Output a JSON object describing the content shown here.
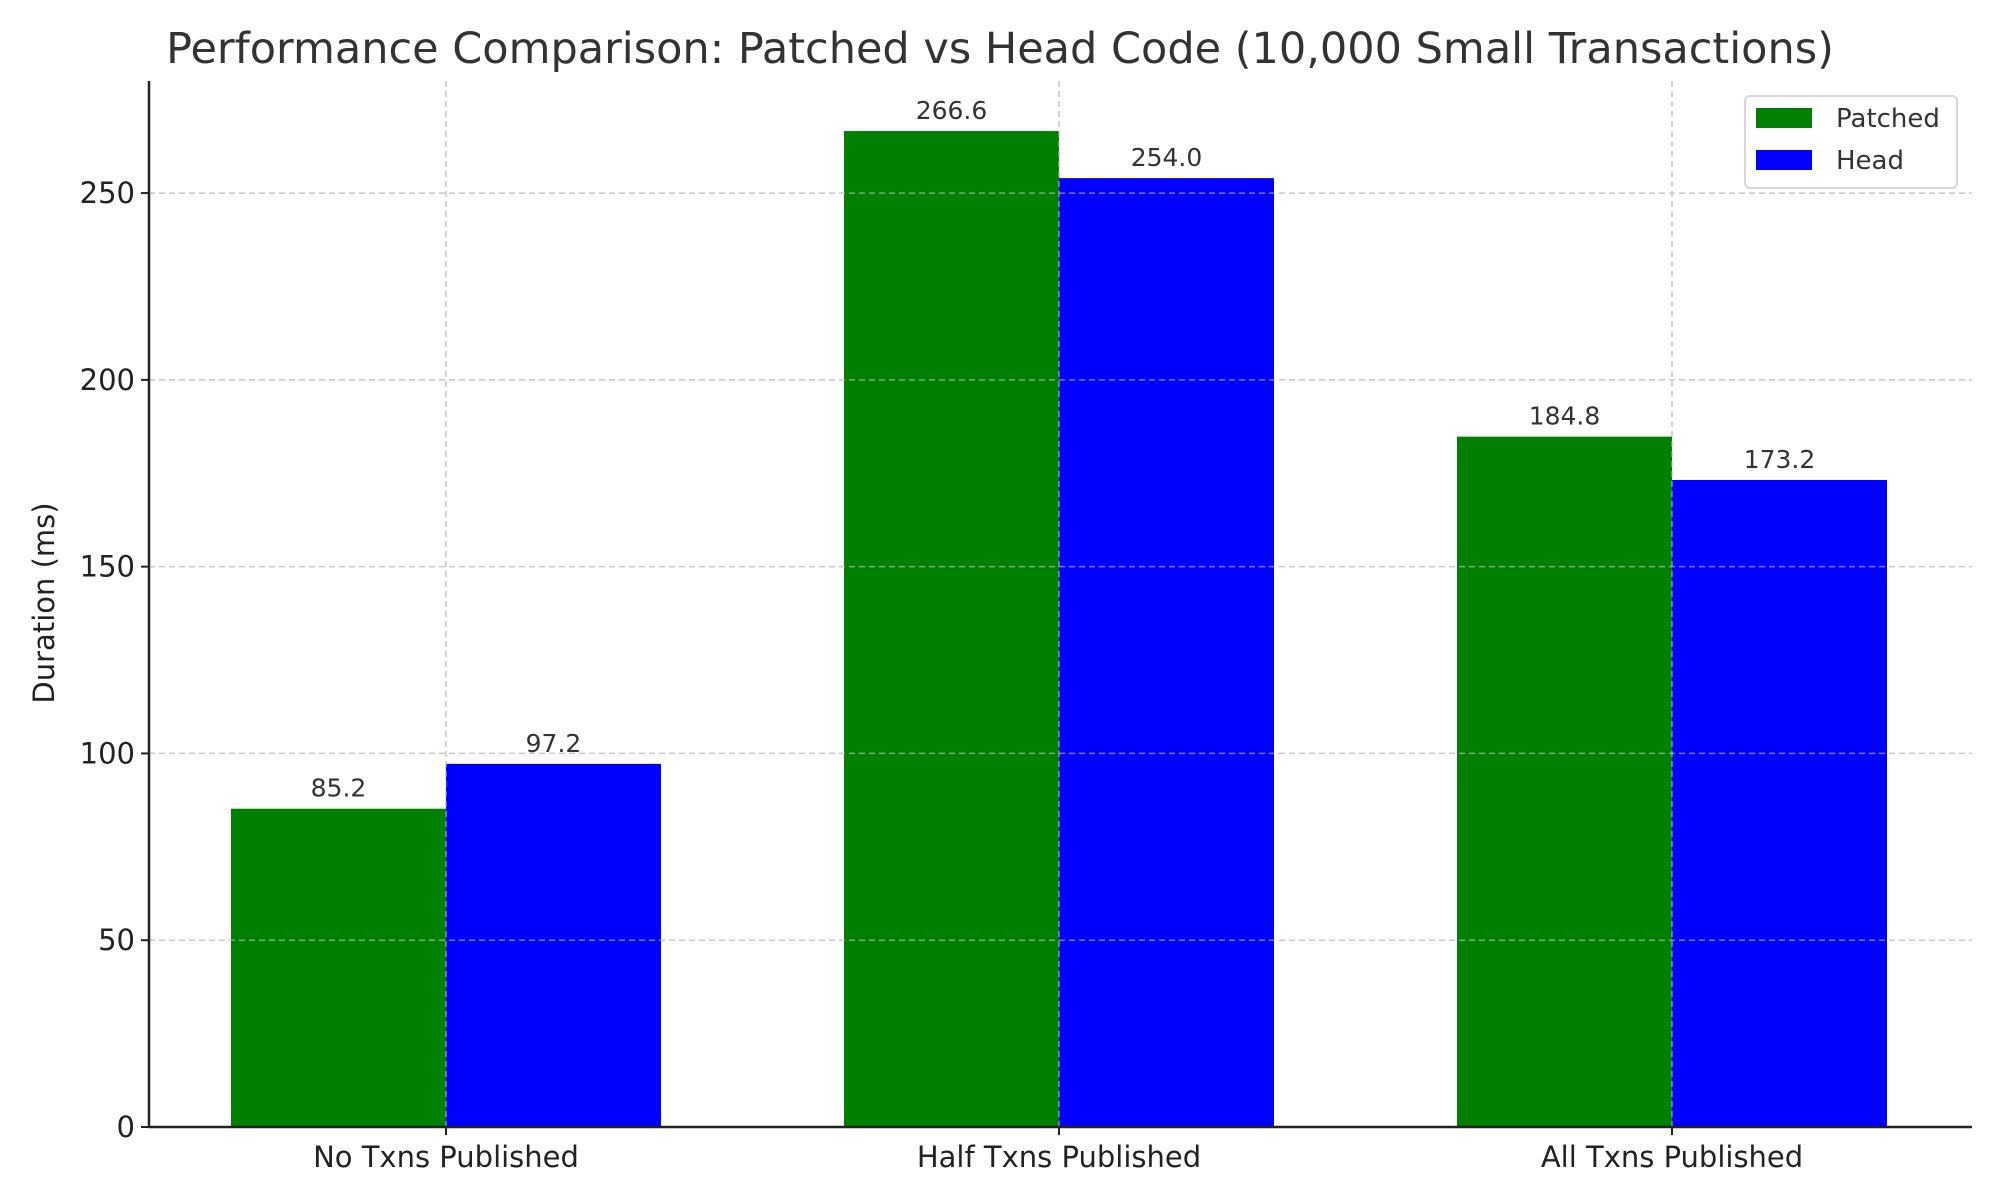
{
  "chart_data": {
    "type": "bar",
    "title": "Performance Comparison: Patched vs Head Code (10,000 Small Transactions)",
    "xlabel": "",
    "ylabel": "Duration (ms)",
    "categories": [
      "No Txns Published",
      "Half Txns Published",
      "All Txns Published"
    ],
    "series": [
      {
        "name": "Patched",
        "color": "#008000",
        "values": [
          85.2,
          266.6,
          184.8
        ],
        "labels": [
          "85.2",
          "266.6",
          "184.8"
        ]
      },
      {
        "name": "Head",
        "color": "#0000ff",
        "values": [
          97.2,
          254.0,
          173.2
        ],
        "labels": [
          "97.2",
          "254.0",
          "173.2"
        ]
      }
    ],
    "ylim": [
      0,
      280
    ],
    "yticks": [
      0,
      50,
      100,
      150,
      200,
      250
    ],
    "ytick_labels": [
      "0",
      "50",
      "100",
      "150",
      "200",
      "250"
    ],
    "grid": true,
    "grid_style": "dashed",
    "legend": {
      "position": "top-right",
      "entries": [
        "Patched",
        "Head"
      ]
    }
  }
}
